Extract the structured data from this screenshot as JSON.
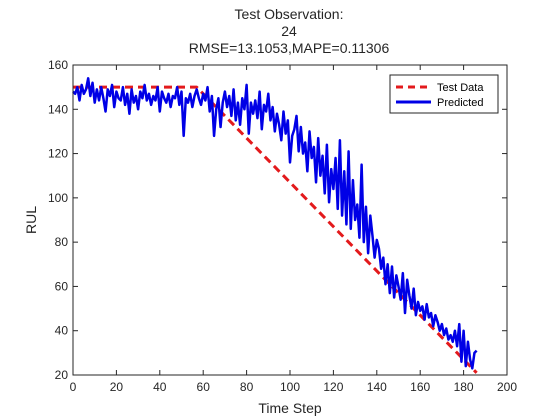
{
  "chart_data": {
    "type": "line",
    "title": [
      "Test Observation:",
      "24",
      "RMSE=13.1053,MAPE=0.11306"
    ],
    "xlabel": "Time Step",
    "ylabel": "RUL",
    "xlim": [
      0,
      200
    ],
    "ylim": [
      20,
      160
    ],
    "xticks": [
      0,
      20,
      40,
      60,
      80,
      100,
      120,
      140,
      160,
      180,
      200
    ],
    "yticks": [
      20,
      40,
      60,
      80,
      100,
      120,
      140,
      160
    ],
    "grid": false,
    "legend_position": "top-right",
    "series": [
      {
        "name": "Test Data",
        "style": "dashed",
        "color": "#e31a1c",
        "x": [
          0,
          57,
          186
        ],
        "y": [
          150,
          150,
          21
        ]
      },
      {
        "name": "Predicted",
        "style": "solid",
        "color": "#0000e6",
        "x": [
          0,
          1,
          2,
          3,
          4,
          5,
          6,
          7,
          8,
          9,
          10,
          11,
          12,
          13,
          14,
          15,
          16,
          17,
          18,
          19,
          20,
          21,
          22,
          23,
          24,
          25,
          26,
          27,
          28,
          29,
          30,
          31,
          32,
          33,
          34,
          35,
          36,
          37,
          38,
          39,
          40,
          41,
          42,
          43,
          44,
          45,
          46,
          47,
          48,
          49,
          50,
          51,
          52,
          53,
          54,
          55,
          56,
          57,
          58,
          59,
          60,
          61,
          62,
          63,
          64,
          65,
          66,
          67,
          68,
          69,
          70,
          71,
          72,
          73,
          74,
          75,
          76,
          77,
          78,
          79,
          80,
          81,
          82,
          83,
          84,
          85,
          86,
          87,
          88,
          89,
          90,
          91,
          92,
          93,
          94,
          95,
          96,
          97,
          98,
          99,
          100,
          101,
          102,
          103,
          104,
          105,
          106,
          107,
          108,
          109,
          110,
          111,
          112,
          113,
          114,
          115,
          116,
          117,
          118,
          119,
          120,
          121,
          122,
          123,
          124,
          125,
          126,
          127,
          128,
          129,
          130,
          131,
          132,
          133,
          134,
          135,
          136,
          137,
          138,
          139,
          140,
          141,
          142,
          143,
          144,
          145,
          146,
          147,
          148,
          149,
          150,
          151,
          152,
          153,
          154,
          155,
          156,
          157,
          158,
          159,
          160,
          161,
          162,
          163,
          164,
          165,
          166,
          167,
          168,
          169,
          170,
          171,
          172,
          173,
          174,
          175,
          176,
          177,
          178,
          179,
          180,
          181,
          182,
          183,
          184,
          185,
          186
        ],
        "y": [
          148,
          147,
          150,
          144,
          151,
          147,
          149,
          154,
          146,
          152,
          143,
          149,
          144,
          150,
          145,
          139,
          149,
          146,
          151,
          141,
          148,
          145,
          144,
          150,
          142,
          147,
          138,
          149,
          143,
          146,
          140,
          148,
          145,
          151,
          144,
          147,
          142,
          146,
          144,
          150,
          139,
          148,
          145,
          143,
          147,
          141,
          146,
          145,
          150,
          142,
          148,
          128,
          145,
          143,
          147,
          141,
          146,
          149,
          145,
          142,
          147,
          144,
          150,
          139,
          146,
          128,
          140,
          145,
          132,
          143,
          148,
          141,
          146,
          137,
          149,
          135,
          143,
          133,
          145,
          140,
          151,
          129,
          143,
          138,
          144,
          136,
          148,
          131,
          142,
          139,
          147,
          135,
          141,
          130,
          138,
          133,
          126,
          139,
          129,
          135,
          116,
          128,
          131,
          137,
          121,
          132,
          120,
          125,
          112,
          130,
          118,
          123,
          107,
          127,
          110,
          119,
          102,
          124,
          98,
          113,
          104,
          118,
          95,
          126,
          92,
          112,
          88,
          121,
          86,
          108,
          90,
          97,
          82,
          115,
          80,
          96,
          75,
          92,
          83,
          73,
          81,
          77,
          68,
          73,
          61,
          70,
          57,
          69,
          55,
          65,
          60,
          54,
          66,
          48,
          63,
          56,
          50,
          59,
          47,
          53,
          49,
          51,
          45,
          52,
          46,
          48,
          42,
          47,
          44,
          40,
          43,
          38,
          41,
          36,
          38,
          35,
          40,
          33,
          43,
          26,
          40,
          24,
          35,
          27,
          23,
          30,
          31
        ]
      }
    ]
  }
}
